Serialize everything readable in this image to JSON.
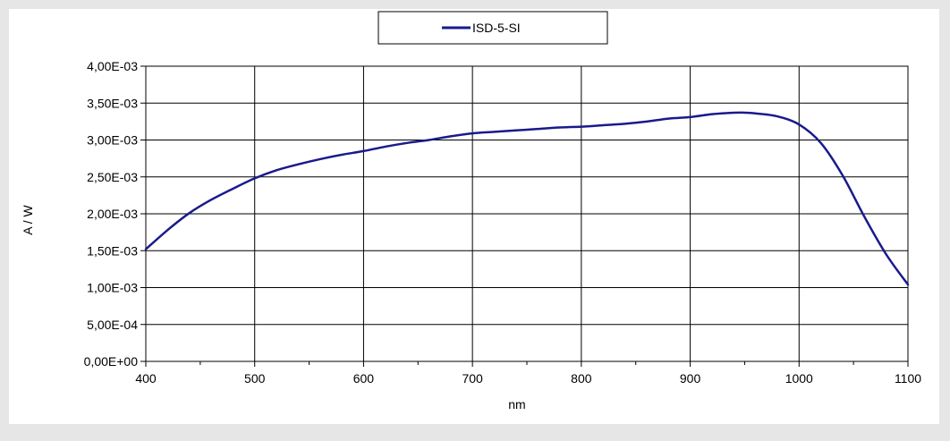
{
  "chart_data": {
    "type": "line",
    "xlabel": "nm",
    "ylabel": "A / W",
    "xlim": [
      400,
      1100
    ],
    "ylim": [
      0,
      0.004
    ],
    "x_ticks": [
      400,
      500,
      600,
      700,
      800,
      900,
      1000,
      1100
    ],
    "x_tick_labels": [
      "400",
      "500",
      "600",
      "700",
      "800",
      "900",
      "1000",
      "1100"
    ],
    "y_ticks": [
      0,
      0.0005,
      0.001,
      0.0015,
      0.002,
      0.0025,
      0.003,
      0.0035,
      0.004
    ],
    "y_tick_labels": [
      "0,00E+00",
      "5,00E-04",
      "1,00E-03",
      "1,50E-03",
      "2,00E-03",
      "2,50E-03",
      "3,00E-03",
      "3,50E-03",
      "4,00E-03"
    ],
    "grid": true,
    "legend": "top-center",
    "series": [
      {
        "name": "ISD-5-SI",
        "color": "#1a1a8c",
        "x": [
          400,
          420,
          440,
          460,
          480,
          500,
          520,
          540,
          560,
          580,
          600,
          620,
          640,
          660,
          680,
          700,
          720,
          740,
          760,
          780,
          800,
          820,
          840,
          860,
          880,
          900,
          920,
          940,
          950,
          960,
          980,
          1000,
          1020,
          1040,
          1060,
          1080,
          1100
        ],
        "y": [
          0.00152,
          0.00178,
          0.00201,
          0.00219,
          0.00234,
          0.00248,
          0.00259,
          0.00267,
          0.00274,
          0.0028,
          0.00285,
          0.00291,
          0.00296,
          0.003,
          0.00305,
          0.00309,
          0.00311,
          0.00313,
          0.00315,
          0.00317,
          0.00318,
          0.0032,
          0.00322,
          0.00325,
          0.00329,
          0.00331,
          0.00335,
          0.00337,
          0.00337,
          0.00336,
          0.00332,
          0.00321,
          0.00296,
          0.00252,
          0.00196,
          0.00145,
          0.00104
        ]
      }
    ]
  }
}
